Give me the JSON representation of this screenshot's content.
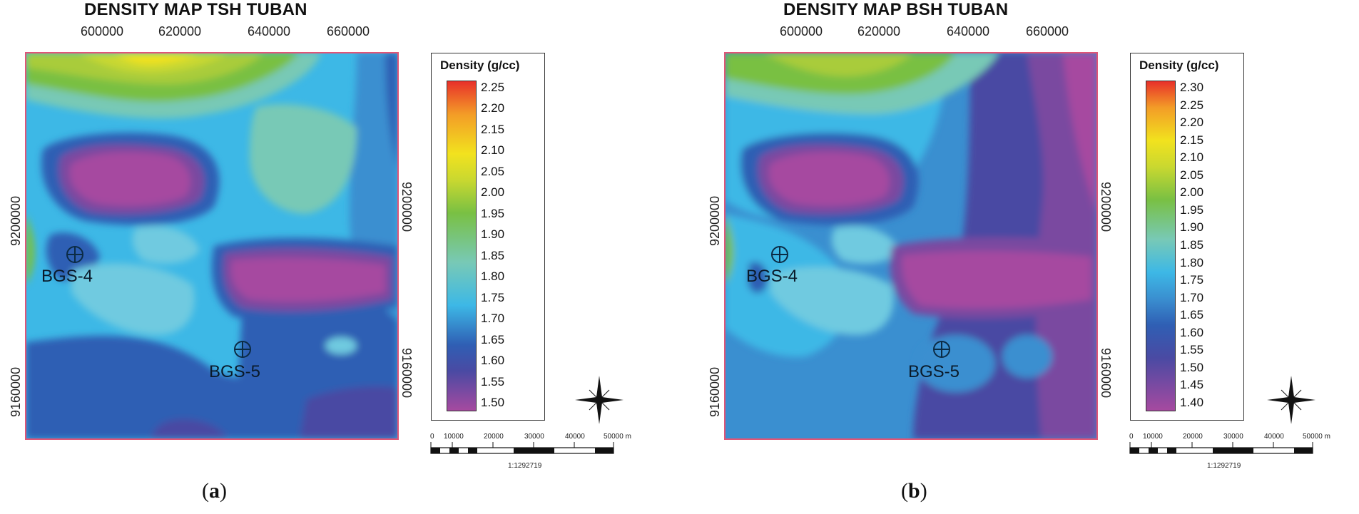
{
  "panel_a": {
    "title": "DENSITY MAP TSH TUBAN",
    "x_ticks": [
      "600000",
      "620000",
      "640000",
      "660000"
    ],
    "y_ticks": [
      "9200000",
      "9160000"
    ],
    "wells": [
      {
        "name": "BGS-4"
      },
      {
        "name": "BGS-5"
      }
    ],
    "legend_title": "Density (g/cc)",
    "legend_values": [
      "2.25",
      "2.20",
      "2.15",
      "2.10",
      "2.05",
      "2.00",
      "1.95",
      "1.90",
      "1.85",
      "1.80",
      "1.75",
      "1.70",
      "1.65",
      "1.60",
      "1.55",
      "1.50"
    ],
    "scale_labels": [
      "0",
      "10000",
      "20000",
      "30000",
      "40000",
      "50000 m"
    ],
    "scale_factor": "1:1292719",
    "caption": "(a)",
    "caption_letter": "a"
  },
  "panel_b": {
    "title": "DENSITY MAP BSH TUBAN",
    "x_ticks": [
      "600000",
      "620000",
      "640000",
      "660000"
    ],
    "y_ticks": [
      "9200000",
      "9160000"
    ],
    "wells": [
      {
        "name": "BGS-4"
      },
      {
        "name": "BGS-5"
      }
    ],
    "legend_title": "Density (g/cc)",
    "legend_values": [
      "2.30",
      "2.25",
      "2.20",
      "2.15",
      "2.10",
      "2.05",
      "2.00",
      "1.95",
      "1.90",
      "1.85",
      "1.80",
      "1.75",
      "1.70",
      "1.65",
      "1.60",
      "1.55",
      "1.50",
      "1.45",
      "1.40"
    ],
    "scale_labels": [
      "0",
      "10000",
      "20000",
      "30000",
      "40000",
      "50000 m"
    ],
    "scale_factor": "1:1292719",
    "caption": "(b)",
    "caption_letter": "b"
  },
  "colors": {
    "red": "#e8302a",
    "orange": "#f39c27",
    "yellow": "#f2e21e",
    "yellowgreen": "#c9d830",
    "green": "#79c043",
    "teal": "#78c9b6",
    "cyan": "#6fcae0",
    "lightblue": "#3db8e6",
    "blue": "#3a8fd0",
    "darkblue": "#2f5fb4",
    "indigo": "#4a4aa3",
    "violet": "#7a4aa0",
    "magenta": "#a64aa0"
  }
}
